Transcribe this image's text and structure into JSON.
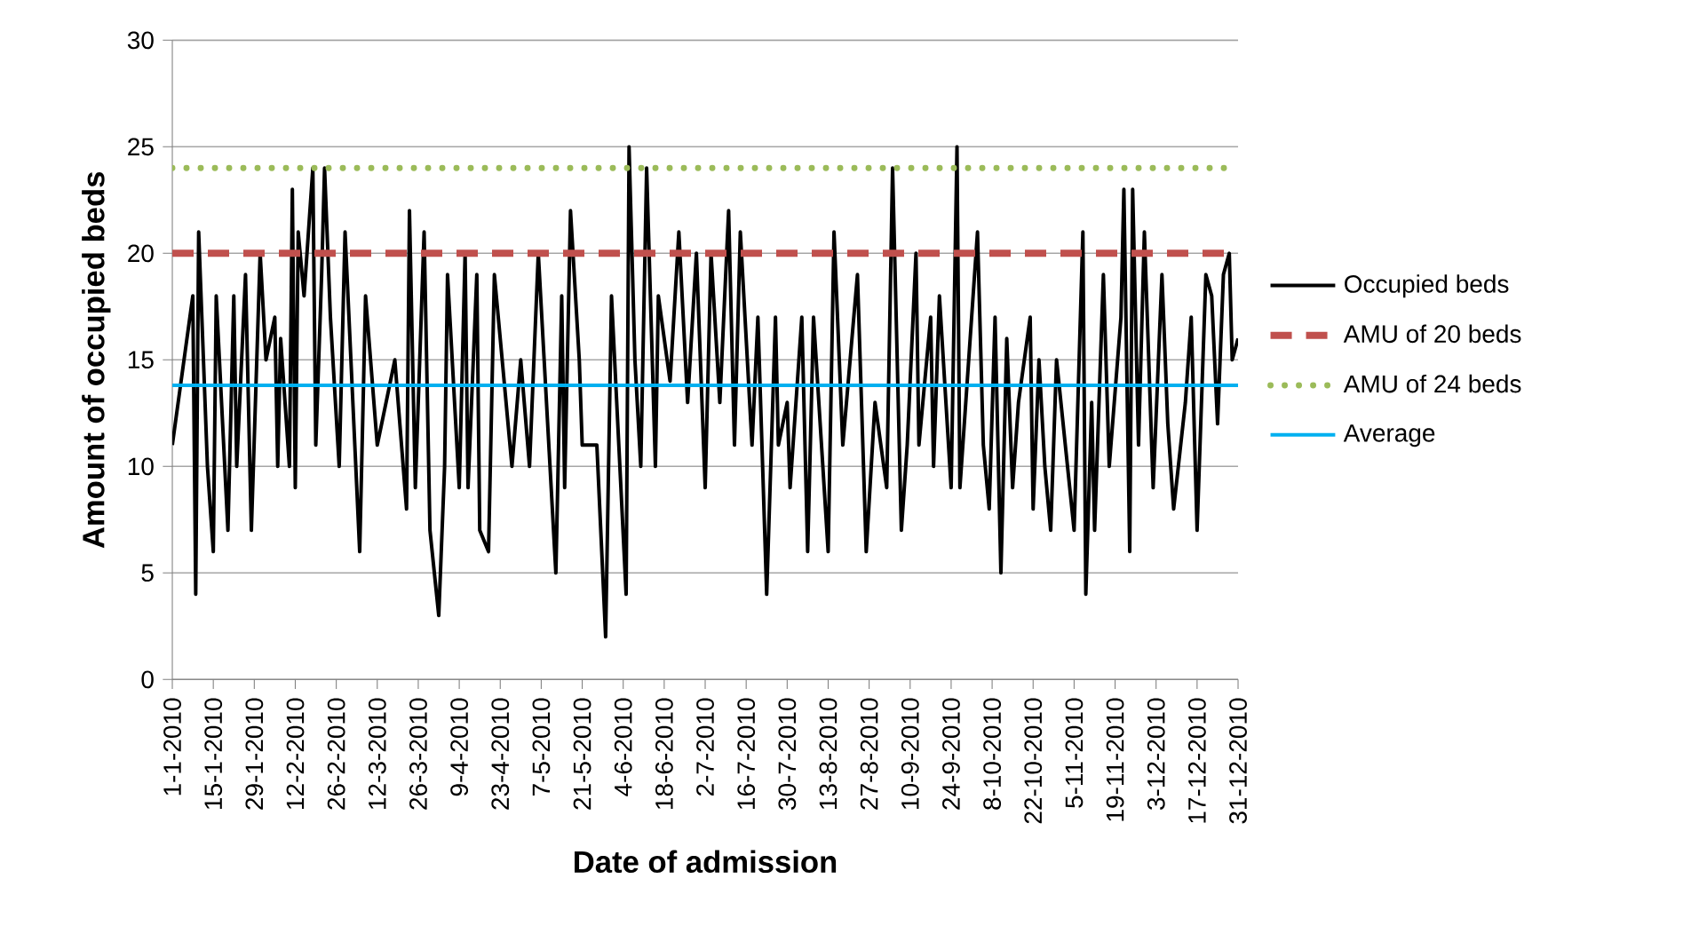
{
  "chart_data": {
    "type": "line",
    "xlabel": "Date of admission",
    "ylabel": "Amount of occupied beds",
    "xlim": [
      "2010-01-01",
      "2010-12-31"
    ],
    "ylim": [
      0,
      30
    ],
    "yticks": [
      0,
      5,
      10,
      15,
      20,
      25,
      30
    ],
    "xticks": [
      {
        "value": "2010-01-01",
        "label": "1-1-2010"
      },
      {
        "value": "2010-01-15",
        "label": "15-1-2010"
      },
      {
        "value": "2010-01-29",
        "label": "29-1-2010"
      },
      {
        "value": "2010-02-12",
        "label": "12-2-2010"
      },
      {
        "value": "2010-02-26",
        "label": "26-2-2010"
      },
      {
        "value": "2010-03-12",
        "label": "12-3-2010"
      },
      {
        "value": "2010-03-26",
        "label": "26-3-2010"
      },
      {
        "value": "2010-04-09",
        "label": "9-4-2010"
      },
      {
        "value": "2010-04-23",
        "label": "23-4-2010"
      },
      {
        "value": "2010-05-07",
        "label": "7-5-2010"
      },
      {
        "value": "2010-05-21",
        "label": "21-5-2010"
      },
      {
        "value": "2010-06-04",
        "label": "4-6-2010"
      },
      {
        "value": "2010-06-18",
        "label": "18-6-2010"
      },
      {
        "value": "2010-07-02",
        "label": "2-7-2010"
      },
      {
        "value": "2010-07-16",
        "label": "16-7-2010"
      },
      {
        "value": "2010-07-30",
        "label": "30-7-2010"
      },
      {
        "value": "2010-08-13",
        "label": "13-8-2010"
      },
      {
        "value": "2010-08-27",
        "label": "27-8-2010"
      },
      {
        "value": "2010-09-10",
        "label": "10-9-2010"
      },
      {
        "value": "2010-09-24",
        "label": "24-9-2010"
      },
      {
        "value": "2010-10-08",
        "label": "8-10-2010"
      },
      {
        "value": "2010-10-22",
        "label": "22-10-2010"
      },
      {
        "value": "2010-11-05",
        "label": "5-11-2010"
      },
      {
        "value": "2010-11-19",
        "label": "19-11-2010"
      },
      {
        "value": "2010-12-03",
        "label": "3-12-2010"
      },
      {
        "value": "2010-12-17",
        "label": "17-12-2010"
      },
      {
        "value": "2010-12-31",
        "label": "31-12-2010"
      }
    ],
    "grid": "y",
    "legend": "right",
    "marker": "none",
    "series": [
      {
        "name": "Occupied beds",
        "color": "#000000",
        "line_style": "solid",
        "x": [
          "2010-01-01",
          "2010-01-05",
          "2010-01-08",
          "2010-01-09",
          "2010-01-10",
          "2010-01-13",
          "2010-01-15",
          "2010-01-16",
          "2010-01-20",
          "2010-01-22",
          "2010-01-23",
          "2010-01-26",
          "2010-01-28",
          "2010-01-31",
          "2010-02-02",
          "2010-02-05",
          "2010-02-06",
          "2010-02-07",
          "2010-02-10",
          "2010-02-11",
          "2010-02-12",
          "2010-02-13",
          "2010-02-15",
          "2010-02-18",
          "2010-02-19",
          "2010-02-21",
          "2010-02-22",
          "2010-02-24",
          "2010-02-27",
          "2010-03-01",
          "2010-03-06",
          "2010-03-08",
          "2010-03-12",
          "2010-03-18",
          "2010-03-22",
          "2010-03-23",
          "2010-03-25",
          "2010-03-28",
          "2010-03-30",
          "2010-04-02",
          "2010-04-04",
          "2010-04-05",
          "2010-04-09",
          "2010-04-11",
          "2010-04-12",
          "2010-04-15",
          "2010-04-16",
          "2010-04-19",
          "2010-04-21",
          "2010-04-27",
          "2010-04-30",
          "2010-05-03",
          "2010-05-06",
          "2010-05-08",
          "2010-05-12",
          "2010-05-14",
          "2010-05-15",
          "2010-05-17",
          "2010-05-20",
          "2010-05-21",
          "2010-05-26",
          "2010-05-29",
          "2010-05-31",
          "2010-06-05",
          "2010-06-06",
          "2010-06-08",
          "2010-06-10",
          "2010-06-12",
          "2010-06-15",
          "2010-06-16",
          "2010-06-20",
          "2010-06-23",
          "2010-06-26",
          "2010-06-29",
          "2010-07-02",
          "2010-07-04",
          "2010-07-07",
          "2010-07-10",
          "2010-07-12",
          "2010-07-14",
          "2010-07-18",
          "2010-07-20",
          "2010-07-23",
          "2010-07-26",
          "2010-07-27",
          "2010-07-30",
          "2010-07-31",
          "2010-08-04",
          "2010-08-06",
          "2010-08-08",
          "2010-08-13",
          "2010-08-15",
          "2010-08-18",
          "2010-08-23",
          "2010-08-26",
          "2010-08-29",
          "2010-09-02",
          "2010-09-04",
          "2010-09-07",
          "2010-09-09",
          "2010-09-12",
          "2010-09-13",
          "2010-09-17",
          "2010-09-18",
          "2010-09-20",
          "2010-09-24",
          "2010-09-26",
          "2010-09-27",
          "2010-10-03",
          "2010-10-05",
          "2010-10-07",
          "2010-10-09",
          "2010-10-11",
          "2010-10-13",
          "2010-10-15",
          "2010-10-17",
          "2010-10-21",
          "2010-10-22",
          "2010-10-24",
          "2010-10-26",
          "2010-10-28",
          "2010-10-30",
          "2010-11-05",
          "2010-11-08",
          "2010-11-09",
          "2010-11-11",
          "2010-11-12",
          "2010-11-15",
          "2010-11-17",
          "2010-11-21",
          "2010-11-22",
          "2010-11-24",
          "2010-11-25",
          "2010-11-27",
          "2010-11-29",
          "2010-12-02",
          "2010-12-05",
          "2010-12-07",
          "2010-12-09",
          "2010-12-13",
          "2010-12-15",
          "2010-12-17",
          "2010-12-20",
          "2010-12-22",
          "2010-12-24",
          "2010-12-26",
          "2010-12-28",
          "2010-12-29",
          "2010-12-31"
        ],
        "values": [
          11,
          15,
          18,
          4,
          21,
          10,
          6,
          18,
          7,
          18,
          10,
          19,
          7,
          20,
          15,
          17,
          10,
          16,
          10,
          23,
          9,
          21,
          18,
          24,
          11,
          19,
          24,
          17,
          10,
          21,
          6,
          18,
          11,
          15,
          8,
          22,
          9,
          21,
          7,
          3,
          10,
          19,
          9,
          20,
          9,
          19,
          7,
          6,
          19,
          10,
          15,
          10,
          20,
          15,
          5,
          18,
          9,
          22,
          15,
          11,
          11,
          2,
          18,
          4,
          25,
          15,
          10,
          24,
          10,
          18,
          14,
          21,
          13,
          20,
          9,
          20,
          13,
          22,
          11,
          21,
          11,
          17,
          4,
          17,
          11,
          13,
          9,
          17,
          6,
          17,
          6,
          21,
          11,
          19,
          6,
          13,
          9,
          24,
          7,
          11,
          20,
          11,
          17,
          10,
          18,
          9,
          25,
          9,
          21,
          11,
          8,
          17,
          5,
          16,
          9,
          13,
          17,
          8,
          15,
          10,
          7,
          15,
          7,
          21,
          4,
          13,
          7,
          19,
          10,
          17,
          23,
          6,
          23,
          11,
          21,
          9,
          19,
          12,
          8,
          13,
          17,
          7,
          19,
          18,
          12,
          19,
          20,
          15,
          16
        ]
      },
      {
        "name": "AMU of 20 beds",
        "color": "#c0504d",
        "line_style": "dashed",
        "x": [
          "2010-01-01",
          "2010-12-31"
        ],
        "values": [
          20,
          20
        ]
      },
      {
        "name": "AMU of 24 beds",
        "color": "#9bbb59",
        "line_style": "dotted",
        "x": [
          "2010-01-01",
          "2010-12-31"
        ],
        "values": [
          24,
          24
        ]
      },
      {
        "name": "Average",
        "color": "#00b0f0",
        "line_style": "solid",
        "x": [
          "2010-01-01",
          "2010-12-31"
        ],
        "values": [
          13.8,
          13.8
        ]
      }
    ]
  }
}
